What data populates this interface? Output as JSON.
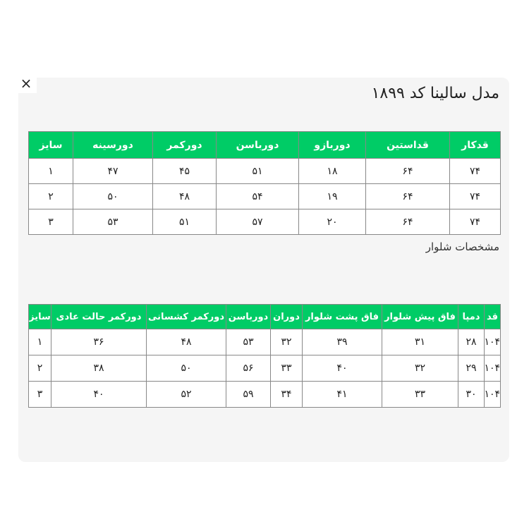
{
  "close_label": "×",
  "title": "مدل سالینا کد ۱۸۹۹",
  "top_table": {
    "headers": [
      "قدکار",
      "قداستین",
      "دوربازو",
      "دورباسن",
      "دورکمر",
      "دورسینه",
      "سایز"
    ],
    "rows": [
      [
        "۷۴",
        "۶۴",
        "۱۸",
        "۵۱",
        "۴۵",
        "۴۷",
        "۱"
      ],
      [
        "۷۴",
        "۶۴",
        "۱۹",
        "۵۴",
        "۴۸",
        "۵۰",
        "۲"
      ],
      [
        "۷۴",
        "۶۴",
        "۲۰",
        "۵۷",
        "۵۱",
        "۵۳",
        "۳"
      ]
    ]
  },
  "pants_title": "مشخصات شلوار",
  "pants_table": {
    "headers": [
      "قد",
      "دمپا",
      "فاق پیش شلوار",
      "فاق پشت شلوار",
      "دوران",
      "دورباسن",
      "دورکمر کشسانی",
      "دورکمر حالت عادی",
      "سایز"
    ],
    "rows": [
      [
        "۱۰۴",
        "۲۸",
        "۳۱",
        "۳۹",
        "۳۲",
        "۵۳",
        "۴۸",
        "۳۶",
        "۱"
      ],
      [
        "۱۰۴",
        "۲۹",
        "۳۲",
        "۴۰",
        "۳۳",
        "۵۶",
        "۵۰",
        "۳۸",
        "۲"
      ],
      [
        "۱۰۴",
        "۳۰",
        "۳۳",
        "۴۱",
        "۳۴",
        "۵۹",
        "۵۲",
        "۴۰",
        "۳"
      ]
    ]
  },
  "colors": {
    "header_green": "#00cc66",
    "panel_bg": "#f5f5f5"
  }
}
